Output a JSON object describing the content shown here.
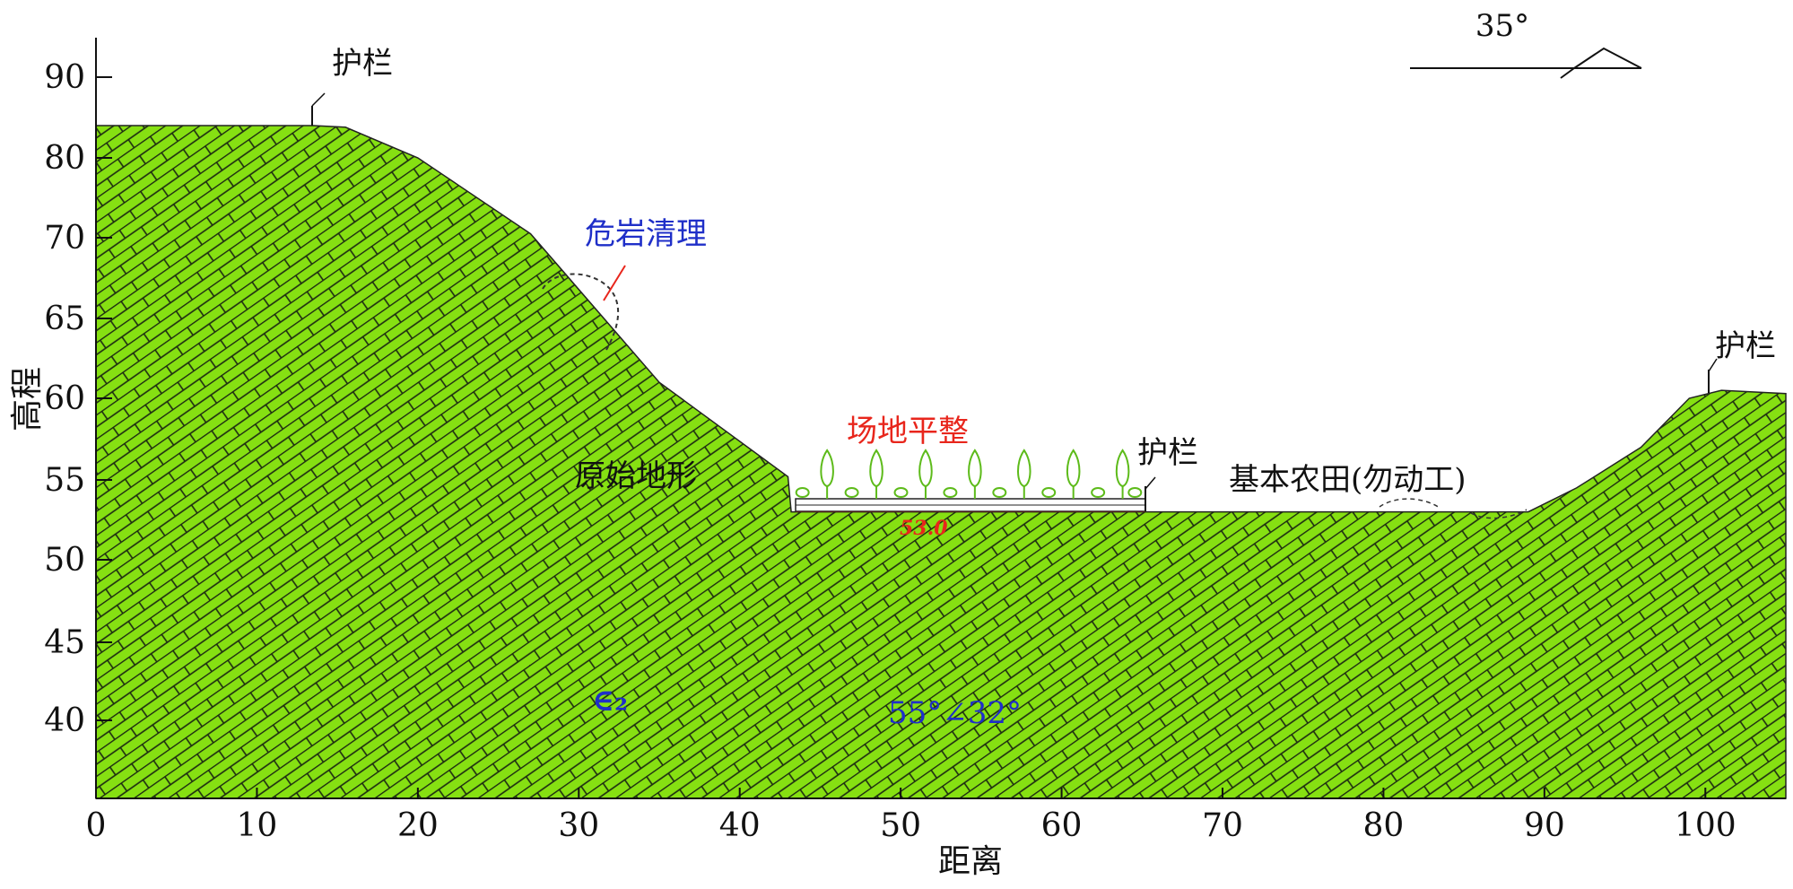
{
  "chart_data": {
    "type": "profile",
    "xlabel": "距离",
    "ylabel": "高程",
    "xlim": [
      0,
      105
    ],
    "ylim": [
      35,
      95
    ],
    "x_ticks": [
      0,
      10,
      20,
      30,
      40,
      50,
      60,
      70,
      80,
      90,
      100
    ],
    "y_ticks": [
      40,
      45,
      50,
      55,
      60,
      65,
      70,
      80,
      90
    ],
    "y_tick_labels": [
      "40",
      "45",
      "50",
      "55",
      "60",
      "65",
      "70",
      "80",
      "90"
    ],
    "terrain": [
      {
        "x": 0,
        "y": 84
      },
      {
        "x": 13.5,
        "y": 84
      },
      {
        "x": 15.5,
        "y": 83.8
      },
      {
        "x": 20,
        "y": 80
      },
      {
        "x": 27,
        "y": 70.5
      },
      {
        "x": 35,
        "y": 61
      },
      {
        "x": 43,
        "y": 55.2
      },
      {
        "x": 43.2,
        "y": 53
      },
      {
        "x": 89,
        "y": 53
      },
      {
        "x": 92,
        "y": 54.5
      },
      {
        "x": 96,
        "y": 57
      },
      {
        "x": 99,
        "y": 60
      },
      {
        "x": 101,
        "y": 60.5
      },
      {
        "x": 105,
        "y": 60.3
      }
    ],
    "leveled_elevation": 53.0,
    "leveled_range": [
      43.2,
      65
    ],
    "colors": {
      "rock_fill": "#86e012",
      "hatch": "#1c2a12",
      "leveling": "#e8261c",
      "trees": "#5dbb1a"
    },
    "annotations": {
      "guardrail_left": "护栏",
      "guardrail_mid": "护栏",
      "guardrail_right": "护栏",
      "danger_rock": "危岩清理",
      "site_leveling": "场地平整",
      "original_terrain": "原始地形",
      "farmland": "基本农田(勿动工)",
      "level_value": "53.0",
      "stratum": "∈₂",
      "attitude": "55°∠32°",
      "dip_angle": "35°"
    }
  }
}
